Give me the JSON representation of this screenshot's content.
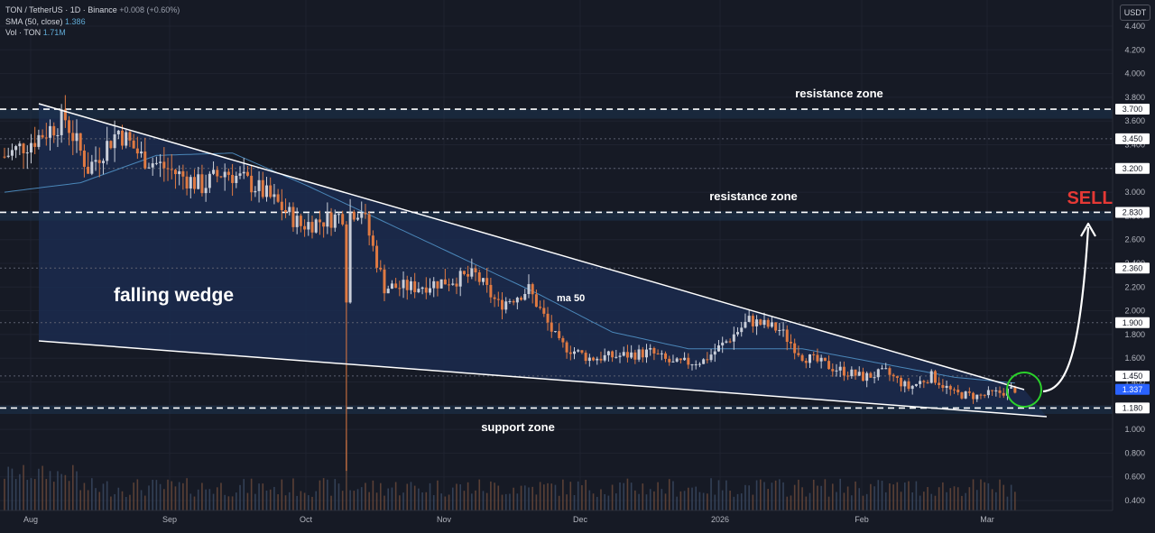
{
  "legend": {
    "symbol_line": "TON / TetherUS · 1D · Binance",
    "change": "+0.008 (+0.60%)",
    "sma_label": "SMA (50, close)",
    "sma_value": "1.386",
    "vol_label": "Vol · TON",
    "vol_value": "1.71M"
  },
  "currency": "USDT",
  "price_axis": {
    "ticks": [
      "4.400",
      "4.200",
      "4.000",
      "3.800",
      "3.600",
      "3.400",
      "3.200",
      "3.000",
      "2.800",
      "2.600",
      "2.400",
      "2.200",
      "2.000",
      "1.800",
      "1.600",
      "1.400",
      "1.200",
      "1.000",
      "0.800",
      "0.600",
      "0.400"
    ],
    "ylim": [
      0.35,
      4.45
    ]
  },
  "time_axis": {
    "labels": [
      "Aug",
      "Sep",
      "Oct",
      "Nov",
      "Dec",
      "2026",
      "Feb",
      "Mar"
    ]
  },
  "levels": [
    {
      "label": "3.700",
      "value": 3.7,
      "style": "dashed",
      "zone": "resistance"
    },
    {
      "label": "3.450",
      "value": 3.45,
      "style": "dotted"
    },
    {
      "label": "3.200",
      "value": 3.2,
      "style": "dotted"
    },
    {
      "label": "2.830",
      "value": 2.83,
      "style": "dashed",
      "zone": "resistance"
    },
    {
      "label": "2.360",
      "value": 2.36,
      "style": "dotted"
    },
    {
      "label": "1.900",
      "value": 1.9,
      "style": "dotted"
    },
    {
      "label": "1.450",
      "value": 1.45,
      "style": "dotted"
    },
    {
      "label": "1.180",
      "value": 1.18,
      "style": "dashed",
      "zone": "support"
    }
  ],
  "current_price": {
    "label": "1.337",
    "value": 1.337
  },
  "annotations": {
    "resistance_upper": "resistance zone",
    "resistance_lower": "resistance zone",
    "support": "support zone",
    "pattern": "falling wedge",
    "ma": "ma 50",
    "signal": "SELL"
  },
  "colors": {
    "background": "#161a25",
    "wedge_fill": "#1b2c4f",
    "up": "#c9ced9",
    "down": "#e07a42",
    "sma": "#4a86b8",
    "signal": "#e53935",
    "highlight_circle": "#2bd12b",
    "current_price_badge": "#2962ff"
  },
  "chart_data": {
    "type": "candlestick",
    "symbol": "TON / TetherUS",
    "interval": "1D",
    "exchange": "Binance",
    "x_labels": [
      "Aug",
      "Sep",
      "Oct",
      "Nov",
      "Dec",
      "2026",
      "Feb",
      "Mar"
    ],
    "anchors": [
      [
        0,
        3.3
      ],
      [
        8,
        3.45
      ],
      [
        16,
        3.62
      ],
      [
        22,
        3.2
      ],
      [
        30,
        3.52
      ],
      [
        36,
        3.3
      ],
      [
        44,
        3.18
      ],
      [
        52,
        3.05
      ],
      [
        58,
        3.18
      ],
      [
        66,
        3.05
      ],
      [
        72,
        2.9
      ],
      [
        78,
        2.72
      ],
      [
        86,
        2.78
      ],
      [
        94,
        2.86
      ],
      [
        100,
        2.2
      ],
      [
        108,
        2.2
      ],
      [
        116,
        2.25
      ],
      [
        124,
        2.3
      ],
      [
        130,
        2.05
      ],
      [
        138,
        2.18
      ],
      [
        146,
        1.72
      ],
      [
        154,
        1.6
      ],
      [
        162,
        1.62
      ],
      [
        170,
        1.65
      ],
      [
        176,
        1.55
      ],
      [
        184,
        1.58
      ],
      [
        190,
        1.74
      ],
      [
        196,
        1.92
      ],
      [
        204,
        1.84
      ],
      [
        210,
        1.62
      ],
      [
        218,
        1.52
      ],
      [
        226,
        1.44
      ],
      [
        232,
        1.48
      ],
      [
        238,
        1.35
      ],
      [
        244,
        1.45
      ],
      [
        250,
        1.3
      ],
      [
        256,
        1.28
      ],
      [
        262,
        1.31
      ],
      [
        266,
        1.34
      ]
    ],
    "sma_anchors": [
      [
        0,
        3.0
      ],
      [
        20,
        3.08
      ],
      [
        40,
        3.31
      ],
      [
        60,
        3.33
      ],
      [
        80,
        3.05
      ],
      [
        100,
        2.75
      ],
      [
        120,
        2.45
      ],
      [
        140,
        2.15
      ],
      [
        160,
        1.82
      ],
      [
        180,
        1.68
      ],
      [
        195,
        1.68
      ],
      [
        210,
        1.68
      ],
      [
        230,
        1.56
      ],
      [
        250,
        1.44
      ],
      [
        266,
        1.39
      ]
    ]
  }
}
